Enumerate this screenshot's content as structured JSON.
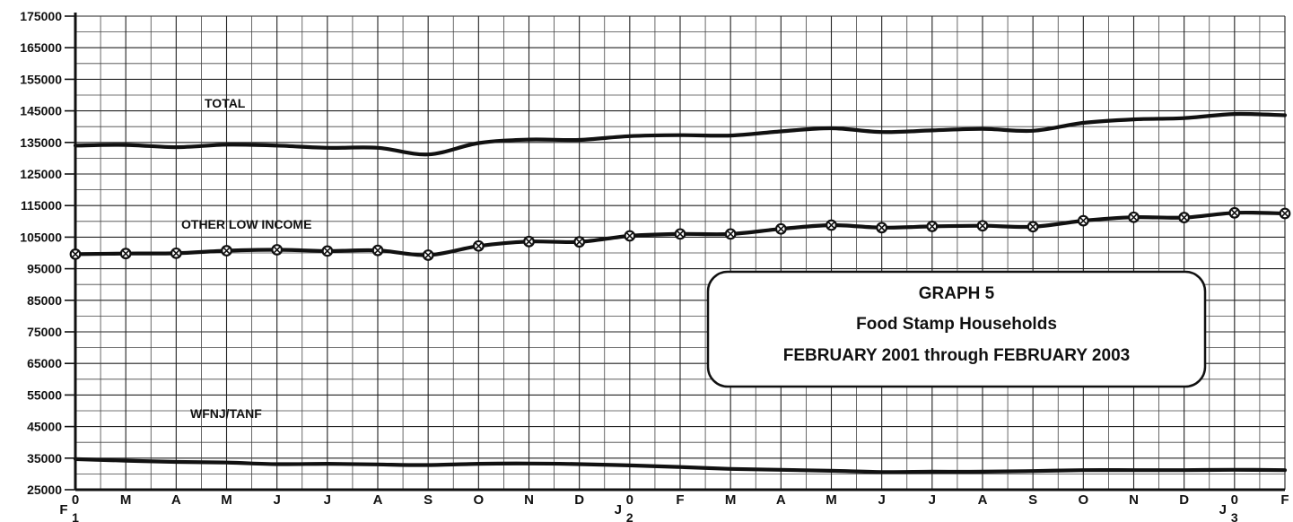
{
  "chart_data": {
    "type": "line",
    "title_lines": [
      "GRAPH 5",
      "Food Stamp Households",
      "FEBRUARY 2001 through FEBRUARY 2003"
    ],
    "ylim": [
      25000,
      175000
    ],
    "y_ticks": [
      25000,
      35000,
      45000,
      55000,
      65000,
      75000,
      85000,
      95000,
      105000,
      115000,
      125000,
      135000,
      145000,
      155000,
      165000,
      175000
    ],
    "grid": true,
    "x_ticks": [
      {
        "top": "0",
        "bottom": "F",
        "sub": "1"
      },
      {
        "top": "M"
      },
      {
        "top": "A"
      },
      {
        "top": "M"
      },
      {
        "top": "J"
      },
      {
        "top": "J"
      },
      {
        "top": "A"
      },
      {
        "top": "S"
      },
      {
        "top": "O"
      },
      {
        "top": "N"
      },
      {
        "top": "D"
      },
      {
        "top": "0",
        "bottom": "J",
        "sub": "2"
      },
      {
        "top": "F"
      },
      {
        "top": "M"
      },
      {
        "top": "A"
      },
      {
        "top": "M"
      },
      {
        "top": "J"
      },
      {
        "top": "J"
      },
      {
        "top": "A"
      },
      {
        "top": "S"
      },
      {
        "top": "O"
      },
      {
        "top": "N"
      },
      {
        "top": "D"
      },
      {
        "top": "0",
        "bottom": "J",
        "sub": "3"
      },
      {
        "top": "F"
      }
    ],
    "series": [
      {
        "name": "TOTAL",
        "values": [
          134000,
          134200,
          133500,
          134300,
          134000,
          133300,
          133300,
          131200,
          134800,
          135900,
          135800,
          137000,
          137300,
          137200,
          138500,
          139500,
          138300,
          138800,
          139300,
          138700,
          141200,
          142300,
          142700,
          144000,
          143600
        ]
      },
      {
        "name": "OTHER LOW INCOME",
        "values": [
          99600,
          99800,
          99900,
          100700,
          101000,
          100600,
          100800,
          99300,
          102200,
          103600,
          103500,
          105400,
          106000,
          106000,
          107600,
          108800,
          108000,
          108400,
          108600,
          108300,
          110200,
          111300,
          111200,
          112700,
          112500
        ]
      },
      {
        "name": "WFNJ/TANF",
        "values": [
          34700,
          34200,
          33800,
          33600,
          33100,
          33200,
          33000,
          32800,
          33200,
          33300,
          33100,
          32700,
          32200,
          31600,
          31300,
          31000,
          30600,
          30700,
          30700,
          30900,
          31200,
          31200,
          31200,
          31300,
          31200
        ]
      }
    ]
  }
}
